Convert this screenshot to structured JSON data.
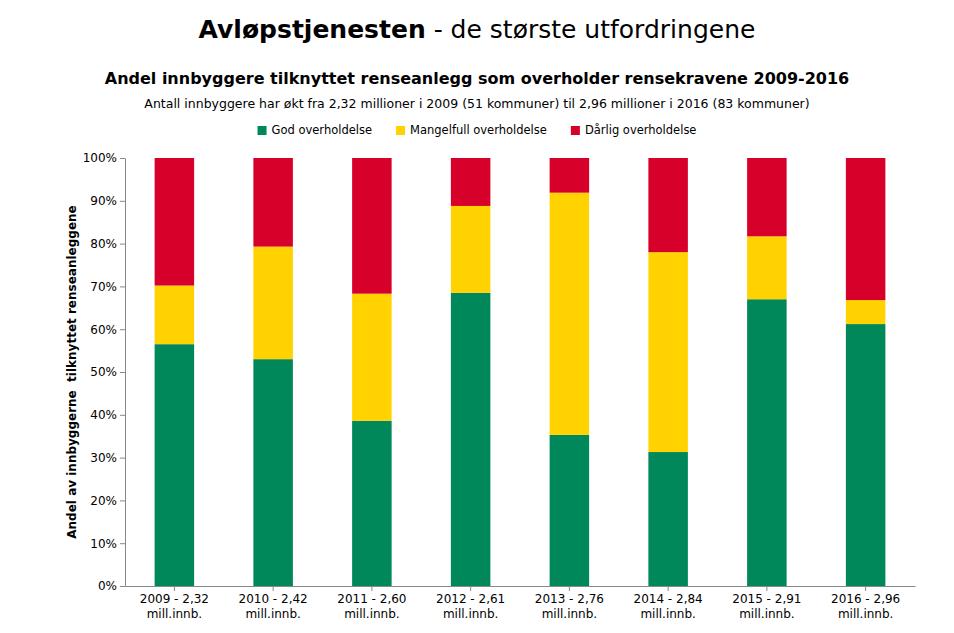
{
  "header": {
    "title": [
      "Avløpstjenesten",
      "- de største utfordringene"
    ]
  },
  "chart_data": {
    "type": "bar",
    "stacked": true,
    "title": "Andel innbyggere tilknyttet renseanlegg som overholder rensekravene 2009-2016",
    "subtitle": "Antall innbyggere har økt fra 2,32 millioner i 2009 (51 kommuner) til 2,96 millioner i 2016 (83 kommuner)",
    "y_label": "Andel av innbyggerne  tilknyttet renseanleggene",
    "legend": "top",
    "categories": [
      "2009 - 2,32\nmill.innb.",
      "2010 - 2,42\nmill.innb.",
      "2011 - 2,60\nmill.innb.",
      "2012 - 2,61\nmill.innb.",
      "2013 - 2,76\nmill.innb.",
      "2014 - 2,84\nmill.innb.",
      "2015 - 2,91\nmill.innb.",
      "2016 - 2,96\nmill.innb."
    ],
    "series": [
      {
        "name": "God overholdelse",
        "color": "#00875a",
        "values": [
          56.5,
          53.0,
          38.6,
          68.5,
          35.3,
          31.3,
          67.0,
          61.2
        ]
      },
      {
        "name": "Mangelfull overholdelse",
        "color": "#ffd200",
        "values": [
          13.7,
          26.3,
          29.7,
          20.3,
          56.6,
          46.7,
          14.7,
          5.6
        ]
      },
      {
        "name": "Dårlig overholdelse",
        "color": "#d7002b",
        "values": [
          29.8,
          20.7,
          31.7,
          11.2,
          8.1,
          22.0,
          18.3,
          33.2
        ]
      }
    ],
    "ylim": [
      0,
      100
    ],
    "yticks": [
      {
        "value": 0,
        "label": "0%"
      },
      {
        "value": 10,
        "label": "10%"
      },
      {
        "value": 20,
        "label": "20%"
      },
      {
        "value": 30,
        "label": "30%"
      },
      {
        "value": 40,
        "label": "40%"
      },
      {
        "value": 50,
        "label": "50%"
      },
      {
        "value": 60,
        "label": "60%"
      },
      {
        "value": 70,
        "label": "70%"
      },
      {
        "value": 80,
        "label": "80%"
      },
      {
        "value": 90,
        "label": "90%"
      },
      {
        "value": 100,
        "label": "100%"
      }
    ],
    "grid": false
  }
}
